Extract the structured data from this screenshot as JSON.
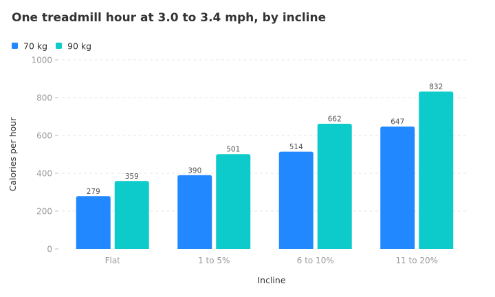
{
  "chart_data": {
    "type": "bar",
    "title": "One treadmill hour at 3.0 to 3.4 mph, by incline",
    "xlabel": "Incline",
    "ylabel": "Calories per hour",
    "categories": [
      "Flat",
      "1 to 5%",
      "6 to 10%",
      "11 to 20%"
    ],
    "series": [
      {
        "name": "70 kg",
        "values": [
          279,
          390,
          514,
          647
        ],
        "color": "#2288ff"
      },
      {
        "name": "90 kg",
        "values": [
          359,
          501,
          662,
          832
        ],
        "color": "#0dcbcb"
      }
    ],
    "ylim": [
      0,
      1000
    ],
    "yticks": [
      0,
      200,
      400,
      600,
      800,
      1000
    ],
    "grid": true,
    "legend_position": "top-left",
    "data_labels": true
  }
}
